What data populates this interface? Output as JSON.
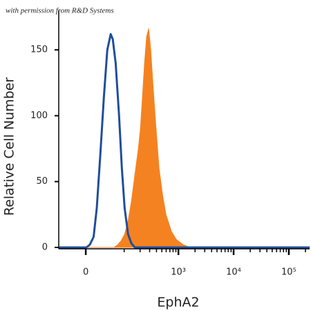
{
  "chart_data": {
    "type": "histogram-overlay",
    "annotation": "with permission from R&D Systems",
    "x_label": "EphA2",
    "y_label": "Relative Cell Number",
    "x_scale": "biexponential",
    "xlim": [
      -58,
      238000
    ],
    "xticks": [
      0,
      {
        "value": 1000,
        "label": "10³"
      },
      {
        "value": 10000,
        "label": "10⁴"
      },
      {
        "value": 100000,
        "label": "10⁵"
      }
    ],
    "xminorticks": [
      100,
      200,
      300,
      400,
      500,
      600,
      700,
      800,
      900,
      2000,
      3000,
      4000,
      5000,
      6000,
      7000,
      8000,
      9000,
      20000,
      30000,
      40000,
      50000,
      60000,
      70000,
      80000,
      90000,
      200000
    ],
    "ylim": [
      0,
      180
    ],
    "yticks": [
      0,
      50,
      100,
      150
    ],
    "series": [
      {
        "color": "#f58220",
        "fill": true,
        "x": [
          -58,
          62,
          74,
          87,
          102,
          119,
          138,
          160,
          186,
          203,
          222,
          242,
          264,
          288,
          314,
          343,
          385,
          445,
          515,
          594,
          749,
          915,
          1221,
          1629,
          238000
        ],
        "values": [
          0,
          0,
          2,
          5,
          10,
          20,
          35,
          55,
          75,
          90,
          115,
          140,
          160,
          166,
          150,
          125,
          95,
          60,
          40,
          25,
          12,
          6,
          2,
          0,
          0
        ]
      },
      {
        "color": "#1f4e9c",
        "fill": false,
        "x": [
          -58,
          1,
          7,
          14,
          20,
          27,
          35,
          43,
          52,
          58,
          67,
          79,
          90,
          102,
          119,
          138,
          160,
          238000
        ],
        "values": [
          0,
          0,
          2,
          8,
          30,
          70,
          115,
          150,
          162,
          158,
          140,
          100,
          60,
          30,
          10,
          3,
          0,
          0
        ]
      }
    ]
  }
}
